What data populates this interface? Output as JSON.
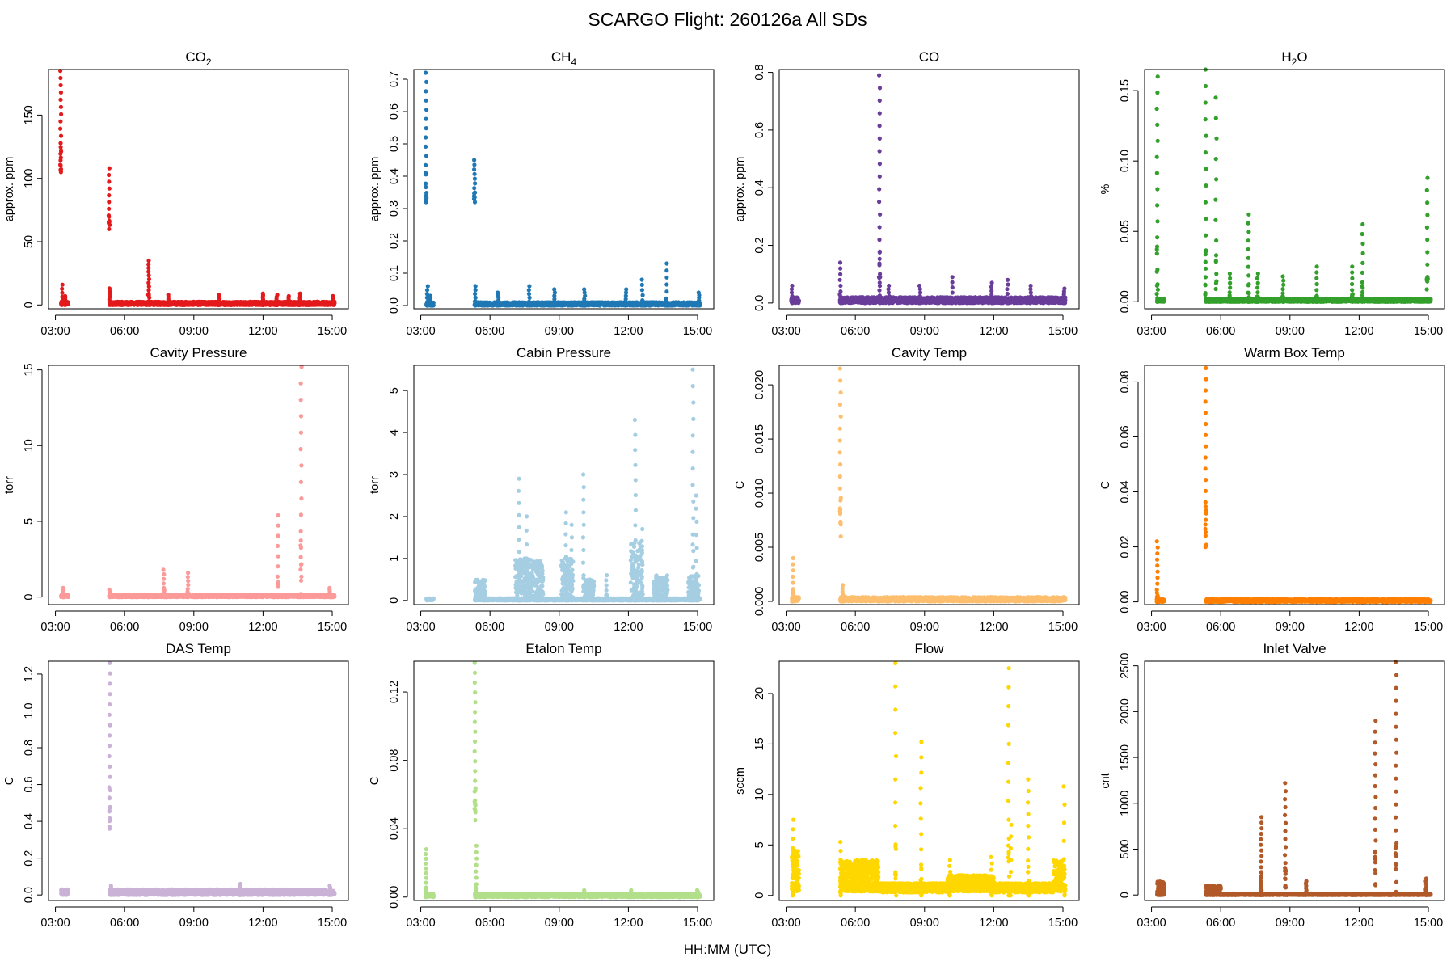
{
  "title": "SCARGO Flight: 260126a  All SDs",
  "xlabel": "HH:MM (UTC)",
  "chart_data": [
    {
      "type": "scatter",
      "title": "CO",
      "sub": "2",
      "ylabel": "approx. ppm",
      "color": "#e31a1c",
      "ylim": [
        -3,
        186
      ],
      "yticks": [
        0,
        50,
        100,
        150
      ],
      "ytick_labels": [
        "0",
        "50",
        "100",
        "150"
      ],
      "base": [
        0,
        2.5
      ],
      "segments": [
        [
          3.25,
          3.55
        ],
        [
          5.35,
          15.1
        ]
      ],
      "spikes": [
        [
          3.23,
          105,
          185,
          14
        ],
        [
          3.29,
          0,
          16,
          5
        ],
        [
          3.42,
          0,
          7,
          5
        ],
        [
          5.33,
          60,
          108,
          9
        ],
        [
          5.36,
          0,
          13,
          6
        ],
        [
          7.05,
          0,
          35,
          12
        ],
        [
          7.9,
          0,
          8,
          5
        ],
        [
          10.1,
          0,
          8,
          5
        ],
        [
          12.0,
          0,
          9,
          6
        ],
        [
          12.6,
          0,
          8,
          5
        ],
        [
          13.1,
          0,
          7,
          5
        ],
        [
          13.6,
          0,
          9,
          5
        ],
        [
          15.05,
          0,
          7,
          5
        ]
      ]
    },
    {
      "type": "scatter",
      "title": "CH",
      "sub": "4",
      "ylabel": "approx. ppm",
      "color": "#1f78b4",
      "ylim": [
        -0.01,
        0.73
      ],
      "yticks": [
        0,
        0.1,
        0.2,
        0.3,
        0.4,
        0.5,
        0.6,
        0.7
      ],
      "ytick_labels": [
        "0.0",
        "0.1",
        "0.2",
        "0.3",
        "0.4",
        "0.5",
        "0.6",
        "0.7"
      ],
      "base": [
        0,
        0.01
      ],
      "segments": [
        [
          3.25,
          3.55
        ],
        [
          5.35,
          15.1
        ]
      ],
      "spikes": [
        [
          3.23,
          0.32,
          0.72,
          14
        ],
        [
          3.29,
          0,
          0.06,
          5
        ],
        [
          3.42,
          0,
          0.03,
          5
        ],
        [
          5.33,
          0.32,
          0.45,
          9
        ],
        [
          5.36,
          0,
          0.06,
          5
        ],
        [
          6.35,
          0,
          0.04,
          5
        ],
        [
          7.7,
          0,
          0.06,
          5
        ],
        [
          8.8,
          0,
          0.05,
          5
        ],
        [
          10.1,
          0,
          0.05,
          5
        ],
        [
          11.9,
          0,
          0.05,
          5
        ],
        [
          12.6,
          0,
          0.08,
          5
        ],
        [
          13.65,
          0,
          0.13,
          6
        ],
        [
          15.05,
          0,
          0.04,
          5
        ]
      ]
    },
    {
      "type": "scatter",
      "title": "CO",
      "sub": "",
      "ylabel": "approx. ppm",
      "color": "#6a3d9a",
      "ylim": [
        -0.02,
        0.81
      ],
      "yticks": [
        0,
        0.2,
        0.4,
        0.6,
        0.8
      ],
      "ytick_labels": [
        "0.0",
        "0.2",
        "0.4",
        "0.6",
        "0.8"
      ],
      "base": [
        0,
        0.02
      ],
      "segments": [
        [
          3.25,
          3.55
        ],
        [
          5.35,
          15.1
        ]
      ],
      "spikes": [
        [
          3.25,
          0,
          0.06,
          5
        ],
        [
          5.35,
          0,
          0.14,
          7
        ],
        [
          7.05,
          0,
          0.79,
          18
        ],
        [
          7.45,
          0,
          0.06,
          5
        ],
        [
          8.8,
          0,
          0.06,
          5
        ],
        [
          10.2,
          0,
          0.09,
          5
        ],
        [
          11.9,
          0,
          0.07,
          5
        ],
        [
          12.6,
          0,
          0.08,
          5
        ],
        [
          13.6,
          0,
          0.06,
          5
        ],
        [
          15.05,
          0,
          0.05,
          5
        ]
      ]
    },
    {
      "type": "scatter",
      "title": "H",
      "sub": "2",
      "title_tail": "O",
      "ylabel": "%",
      "color": "#33a02c",
      "ylim": [
        -0.005,
        0.165
      ],
      "yticks": [
        0,
        0.05,
        0.1,
        0.15
      ],
      "ytick_labels": [
        "0.00",
        "0.05",
        "0.10",
        "0.15"
      ],
      "base": [
        0,
        0.002
      ],
      "segments": [
        [
          3.25,
          3.55
        ],
        [
          5.35,
          15.1
        ]
      ],
      "spikes": [
        [
          3.25,
          0,
          0.16,
          14
        ],
        [
          5.35,
          0,
          0.165,
          14
        ],
        [
          5.8,
          0,
          0.145,
          10
        ],
        [
          6.4,
          0,
          0.02,
          6
        ],
        [
          7.2,
          0,
          0.062,
          10
        ],
        [
          7.6,
          0,
          0.02,
          6
        ],
        [
          8.7,
          0,
          0.018,
          6
        ],
        [
          10.15,
          0,
          0.025,
          6
        ],
        [
          11.7,
          0,
          0.025,
          6
        ],
        [
          12.15,
          0,
          0.055,
          8
        ],
        [
          14.95,
          0,
          0.088,
          10
        ]
      ]
    },
    {
      "type": "scatter",
      "title": "Cavity Pressure",
      "sub": "",
      "ylabel": "torr",
      "color": "#fb9a99",
      "ylim": [
        -0.5,
        15.3
      ],
      "yticks": [
        0,
        5,
        10,
        15
      ],
      "ytick_labels": [
        "0",
        "5",
        "10",
        "15"
      ],
      "base": [
        0,
        0.15
      ],
      "segments": [
        [
          3.25,
          3.55
        ],
        [
          5.35,
          15.1
        ]
      ],
      "spikes": [
        [
          3.35,
          0,
          0.6,
          5
        ],
        [
          5.35,
          0,
          0.5,
          5
        ],
        [
          7.7,
          0,
          1.8,
          6
        ],
        [
          8.75,
          0,
          1.6,
          6
        ],
        [
          12.65,
          0,
          5.4,
          8
        ],
        [
          13.65,
          0,
          15.2,
          14
        ],
        [
          14.9,
          0,
          0.6,
          5
        ]
      ]
    },
    {
      "type": "scatter",
      "title": "Cabin Pressure",
      "sub": "",
      "ylabel": "torr",
      "color": "#a6cee3",
      "ylim": [
        -0.1,
        5.6
      ],
      "yticks": [
        0,
        1,
        2,
        3,
        4,
        5
      ],
      "ytick_labels": [
        "0",
        "1",
        "2",
        "3",
        "4",
        "5"
      ],
      "base": [
        0,
        0.05
      ],
      "segments": [
        [
          3.25,
          3.55
        ],
        [
          5.35,
          15.1
        ]
      ],
      "bands": [
        [
          5.35,
          5.8,
          0,
          0.5
        ],
        [
          7.1,
          8.3,
          0,
          1.0
        ],
        [
          9.1,
          9.6,
          0,
          1.0
        ],
        [
          10.1,
          10.5,
          0,
          0.5
        ],
        [
          12.1,
          12.6,
          0,
          1.4
        ],
        [
          13.1,
          13.7,
          0,
          0.6
        ],
        [
          14.6,
          15.05,
          0,
          0.6
        ]
      ],
      "spikes": [
        [
          7.25,
          0,
          2.9,
          10
        ],
        [
          7.6,
          0,
          2.0,
          6
        ],
        [
          9.3,
          0,
          2.1,
          8
        ],
        [
          9.55,
          0,
          1.8,
          6
        ],
        [
          10.05,
          0,
          3.0,
          10
        ],
        [
          11.05,
          0,
          0.6,
          5
        ],
        [
          12.3,
          0,
          4.3,
          12
        ],
        [
          12.6,
          0,
          1.7,
          6
        ],
        [
          13.2,
          0,
          0.5,
          5
        ],
        [
          14.8,
          0,
          5.5,
          14
        ],
        [
          14.95,
          0,
          2.5,
          8
        ]
      ]
    },
    {
      "type": "scatter",
      "title": "Cavity Temp",
      "sub": "",
      "ylabel": "C",
      "color": "#fdbf6f",
      "ylim": [
        -0.0003,
        0.0218
      ],
      "yticks": [
        0,
        0.005,
        0.01,
        0.015,
        0.02
      ],
      "ytick_labels": [
        "0.000",
        "0.005",
        "0.010",
        "0.015",
        "0.020"
      ],
      "base": [
        0,
        0.0004
      ],
      "segments": [
        [
          3.25,
          3.55
        ],
        [
          5.35,
          15.1
        ]
      ],
      "spikes": [
        [
          3.3,
          0,
          0.004,
          7
        ],
        [
          5.35,
          0.006,
          0.0215,
          14
        ],
        [
          5.45,
          0,
          0.0015,
          5
        ]
      ]
    },
    {
      "type": "scatter",
      "title": "Warm Box Temp",
      "sub": "",
      "ylabel": "C",
      "color": "#ff7f00",
      "ylim": [
        -0.001,
        0.086
      ],
      "yticks": [
        0,
        0.02,
        0.04,
        0.06,
        0.08
      ],
      "ytick_labels": [
        "0.00",
        "0.02",
        "0.04",
        "0.06",
        "0.08"
      ],
      "base": [
        0,
        0.001
      ],
      "segments": [
        [
          3.25,
          3.55
        ],
        [
          5.35,
          15.1
        ]
      ],
      "spikes": [
        [
          3.25,
          0,
          0.022,
          10
        ],
        [
          5.35,
          0.02,
          0.085,
          16
        ]
      ]
    },
    {
      "type": "scatter",
      "title": "DAS Temp",
      "sub": "",
      "ylabel": "C",
      "color": "#cab2d6",
      "ylim": [
        -0.03,
        1.27
      ],
      "yticks": [
        0,
        0.2,
        0.4,
        0.6,
        0.8,
        1.0,
        1.2
      ],
      "ytick_labels": [
        "0.0",
        "0.2",
        "0.4",
        "0.6",
        "0.8",
        "1.0",
        "1.2"
      ],
      "base": [
        0,
        0.03
      ],
      "segments": [
        [
          3.25,
          3.55
        ],
        [
          5.35,
          15.1
        ]
      ],
      "spikes": [
        [
          5.35,
          0.36,
          1.26,
          16
        ],
        [
          5.4,
          0,
          0.05,
          5
        ],
        [
          11.0,
          0,
          0.06,
          5
        ],
        [
          14.9,
          0,
          0.05,
          5
        ]
      ]
    },
    {
      "type": "scatter",
      "title": "Etalon Temp",
      "sub": "",
      "ylabel": "C",
      "color": "#b2df8a",
      "ylim": [
        -0.002,
        0.138
      ],
      "yticks": [
        0,
        0.04,
        0.08,
        0.12
      ],
      "ytick_labels": [
        "0.00",
        "0.04",
        "0.08",
        "0.12"
      ],
      "base": [
        0,
        0.002
      ],
      "segments": [
        [
          3.25,
          3.55
        ],
        [
          5.35,
          15.1
        ]
      ],
      "spikes": [
        [
          3.23,
          0,
          0.028,
          10
        ],
        [
          5.35,
          0.045,
          0.137,
          16
        ],
        [
          5.4,
          0,
          0.03,
          8
        ],
        [
          10.1,
          0,
          0.004,
          5
        ],
        [
          12.1,
          0,
          0.004,
          5
        ],
        [
          15.0,
          0,
          0.004,
          5
        ]
      ]
    },
    {
      "type": "scatter",
      "title": "Flow",
      "sub": "",
      "ylabel": "sccm",
      "color": "#ffd700",
      "ylim": [
        -0.5,
        23.2
      ],
      "yticks": [
        0,
        5,
        10,
        15,
        20
      ],
      "ytick_labels": [
        "0",
        "5",
        "10",
        "15",
        "20"
      ],
      "base": [
        0.4,
        1.2
      ],
      "segments": [
        [
          3.25,
          3.55
        ],
        [
          5.35,
          15.1
        ]
      ],
      "bands": [
        [
          3.25,
          3.55,
          1,
          4.5
        ],
        [
          5.35,
          7.0,
          1,
          3.5
        ],
        [
          7.0,
          10.0,
          0.3,
          1.2
        ],
        [
          10.0,
          12.0,
          0.8,
          2
        ],
        [
          12.0,
          14.6,
          0.3,
          1.2
        ],
        [
          14.6,
          15.05,
          0.5,
          3.5
        ]
      ],
      "spikes": [
        [
          3.3,
          0,
          7.5,
          8
        ],
        [
          5.35,
          0,
          5.3,
          6
        ],
        [
          7.75,
          0,
          23,
          10
        ],
        [
          8.85,
          0,
          15.2,
          10
        ],
        [
          10.1,
          0,
          3.5,
          6
        ],
        [
          11.9,
          0,
          3.8,
          6
        ],
        [
          12.65,
          0,
          22.5,
          12
        ],
        [
          12.75,
          0,
          7,
          6
        ],
        [
          13.5,
          0,
          11.5,
          10
        ],
        [
          15.05,
          0,
          10.8,
          6
        ]
      ]
    },
    {
      "type": "scatter",
      "title": "Inlet Valve",
      "sub": "",
      "ylabel": "cnt",
      "color": "#b15928",
      "ylim": [
        -60,
        2550
      ],
      "yticks": [
        0,
        500,
        1000,
        1500,
        2000,
        2500
      ],
      "ytick_labels": [
        "0",
        "500",
        "1000",
        "1500",
        "2000",
        "2500"
      ],
      "base": [
        0,
        15
      ],
      "segments": [
        [
          3.25,
          3.55
        ],
        [
          5.35,
          15.1
        ]
      ],
      "bands": [
        [
          3.25,
          3.55,
          0,
          150
        ],
        [
          5.35,
          6.0,
          0,
          100
        ]
      ],
      "spikes": [
        [
          7.75,
          0,
          850,
          14
        ],
        [
          8.8,
          0,
          1220,
          14
        ],
        [
          9.7,
          0,
          150,
          6
        ],
        [
          12.7,
          0,
          1900,
          16
        ],
        [
          13.6,
          0,
          2540,
          18
        ],
        [
          14.9,
          0,
          180,
          6
        ],
        [
          7.75,
          0,
          250,
          5
        ]
      ]
    }
  ],
  "xaxis": {
    "range": [
      2.7,
      15.7
    ],
    "ticks": [
      3,
      6,
      9,
      12,
      15
    ],
    "tick_labels": [
      "03:00",
      "06:00",
      "09:00",
      "12:00",
      "15:00"
    ]
  }
}
